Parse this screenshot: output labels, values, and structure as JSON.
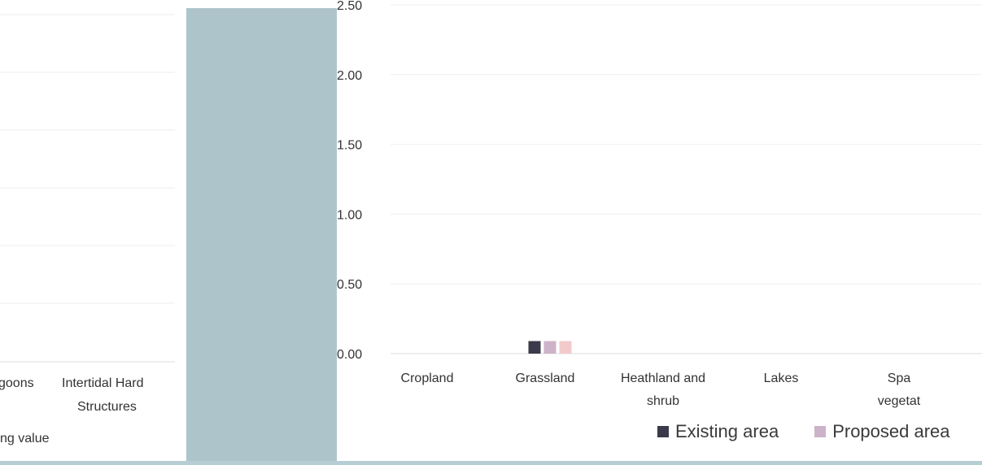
{
  "left_panel": {
    "category_fragment": "goons",
    "category_full_line1": "Intertidal Hard",
    "category_full_line2": "Structures",
    "legend_fragment": "ng value"
  },
  "chart_data": {
    "type": "bar",
    "categories": [
      {
        "line1": "Cropland",
        "line2": ""
      },
      {
        "line1": "Grassland",
        "line2": ""
      },
      {
        "line1": "Heathland and",
        "line2": "shrub"
      },
      {
        "line1": "Lakes",
        "line2": ""
      },
      {
        "line1": "Spa",
        "line2": "vegetat"
      }
    ],
    "series": [
      {
        "name": "Existing area",
        "color": "#3b3a4a",
        "values": [
          0,
          0.09,
          0,
          0,
          0
        ]
      },
      {
        "name": "Proposed area",
        "color": "#cdb3c9",
        "values": [
          0,
          0.09,
          0,
          0,
          0
        ]
      },
      {
        "name": "",
        "color": "#f3caca",
        "values": [
          0,
          0.09,
          0,
          0,
          0
        ]
      }
    ],
    "y_ticks": [
      "0.00",
      "0.50",
      "1.00",
      "1.50",
      "2.00",
      "2.50"
    ],
    "ylim": [
      0,
      2.5
    ],
    "grid": true,
    "legend_position": "bottom-right"
  }
}
